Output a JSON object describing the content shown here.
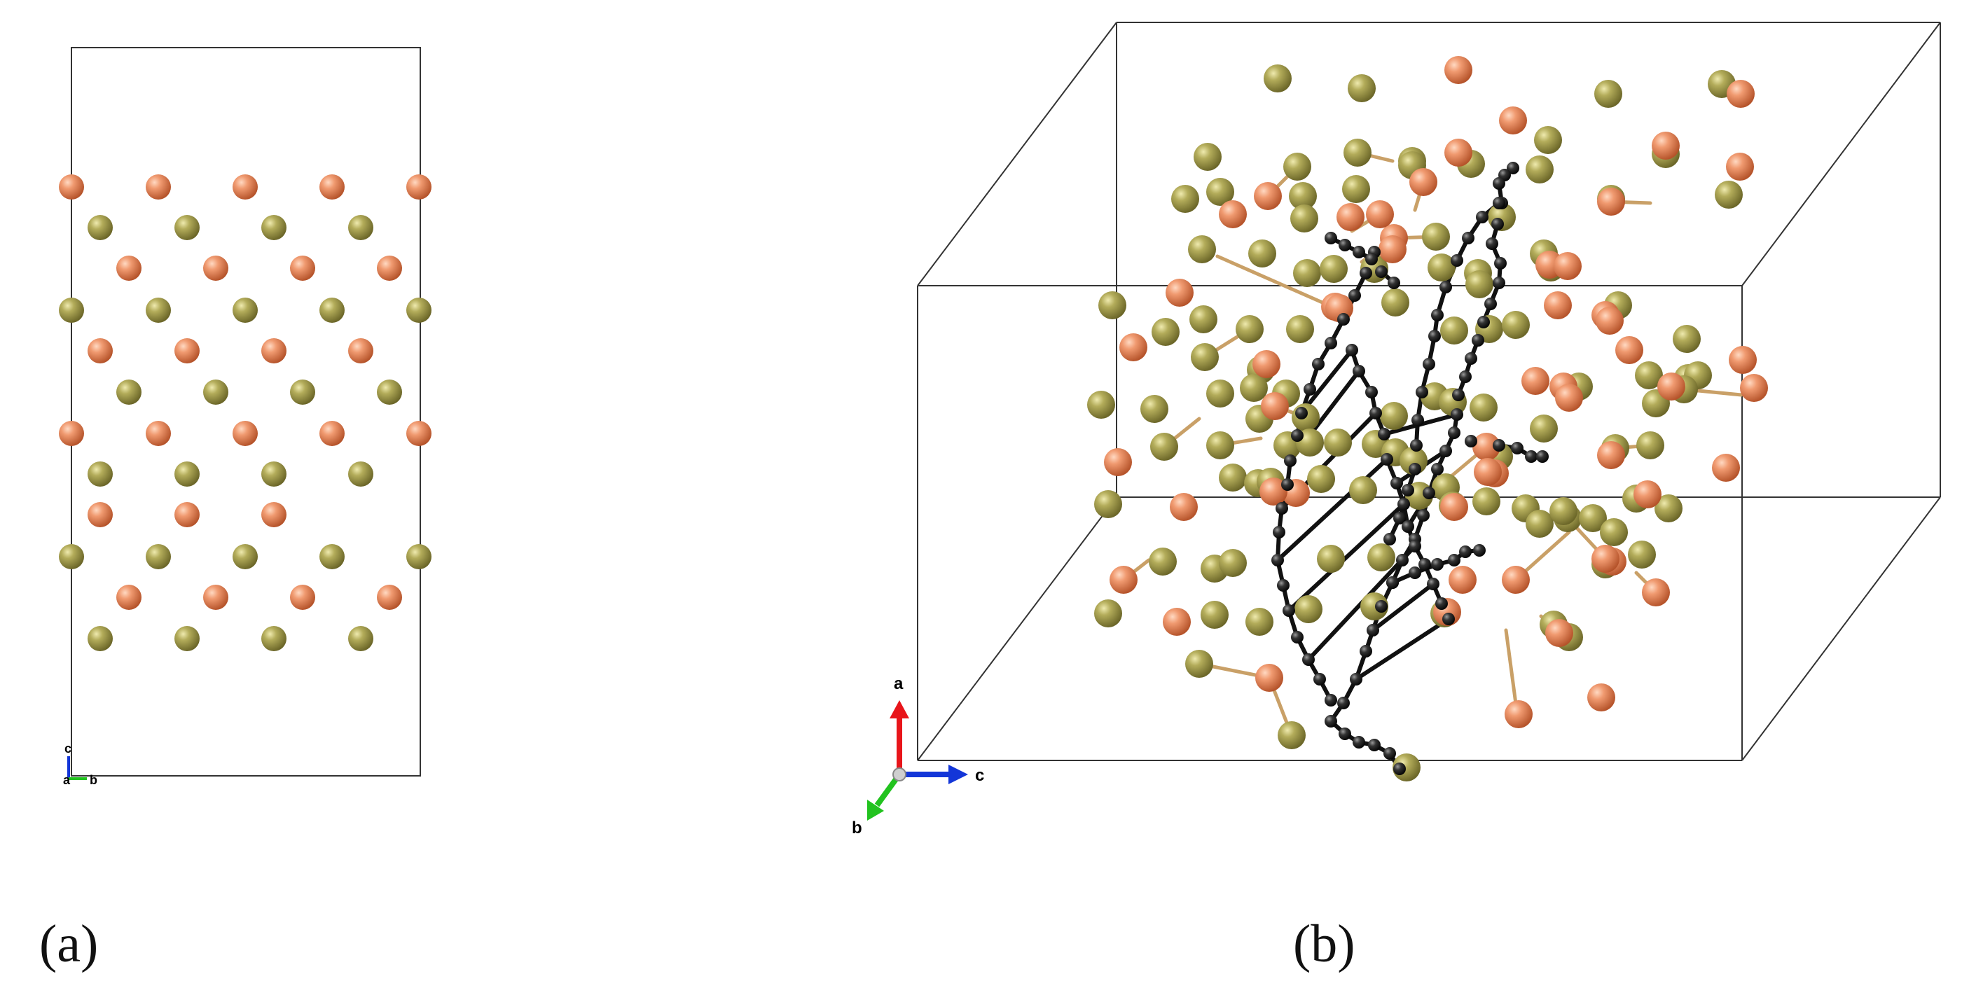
{
  "panels": [
    {
      "id": "a",
      "label": "(a)",
      "axes": {
        "up": "c",
        "origin": "a",
        "right": "b"
      }
    },
    {
      "id": "b",
      "label": "(b)",
      "axes": {
        "up": "a",
        "right": "c",
        "down_left": "b"
      }
    }
  ],
  "colors": {
    "cu_atom": "#e07e52",
    "sb_atom": "#9c9645",
    "carbon_atom": "#1a1a1a",
    "cell_edge": "#333333",
    "axis_a": "#e8151a",
    "axis_b": "#22c31f",
    "axis_c": "#1336d8"
  },
  "icons": [
    "cu-atom-sphere",
    "sb-atom-sphere",
    "carbon-atom-sphere",
    "unit-cell-box",
    "crystal-axes-icon"
  ]
}
